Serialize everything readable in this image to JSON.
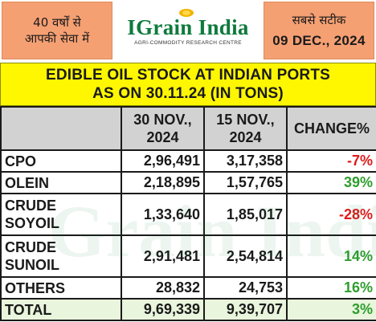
{
  "header": {
    "left_line1": "40 वर्षों से",
    "left_line2": "आपकी सेवा में",
    "brand_name": "IGrain India",
    "brand_tagline": "AGRI-COMMODITY RESEARCH CENTRE",
    "right_line1": "सबसे सटीक",
    "date": "09 DEC., 2024"
  },
  "title": {
    "line1": "EDIBLE OIL STOCK AT INDIAN PORTS",
    "line2": "AS ON 30.11.24 (IN TONS)"
  },
  "table": {
    "headers": [
      "",
      "30 NOV., 2024",
      "15 NOV., 2024",
      "CHANGE%"
    ],
    "header_col1_line1": "30 NOV.,",
    "header_col1_line2": "2024",
    "header_col2_line1": "15 NOV.,",
    "header_col2_line2": "2024",
    "header_col3": "CHANGE%",
    "rows": [
      {
        "name_line1": "CPO",
        "name_line2": "",
        "v30": "2,96,491",
        "v15": "3,17,358",
        "change": "-7%",
        "sign": "neg"
      },
      {
        "name_line1": "OLEIN",
        "name_line2": "",
        "v30": "2,18,895",
        "v15": "1,57,765",
        "change": "39%",
        "sign": "pos"
      },
      {
        "name_line1": "CRUDE",
        "name_line2": "SOYOIL",
        "v30": "1,33,640",
        "v15": "1,85,017",
        "change": "-28%",
        "sign": "neg"
      },
      {
        "name_line1": "CRUDE",
        "name_line2": "SUNOIL",
        "v30": "2,91,481",
        "v15": "2,54,814",
        "change": "14%",
        "sign": "pos"
      },
      {
        "name_line1": "OTHERS",
        "name_line2": "",
        "v30": "28,832",
        "v15": "24,753",
        "change": "16%",
        "sign": "pos"
      }
    ],
    "total": {
      "name": "TOTAL",
      "v30": "9,69,339",
      "v15": "9,39,707",
      "change": "3%"
    }
  },
  "colors": {
    "orange_box": "#f5a073",
    "title_band": "#fff700",
    "header_grey": "#d2d2d2",
    "total_row": "#e9f5dc",
    "negative": "#e01b1b",
    "positive": "#2e9e2e",
    "brand_green": "#0e7a3c"
  },
  "watermark": "Grain India"
}
